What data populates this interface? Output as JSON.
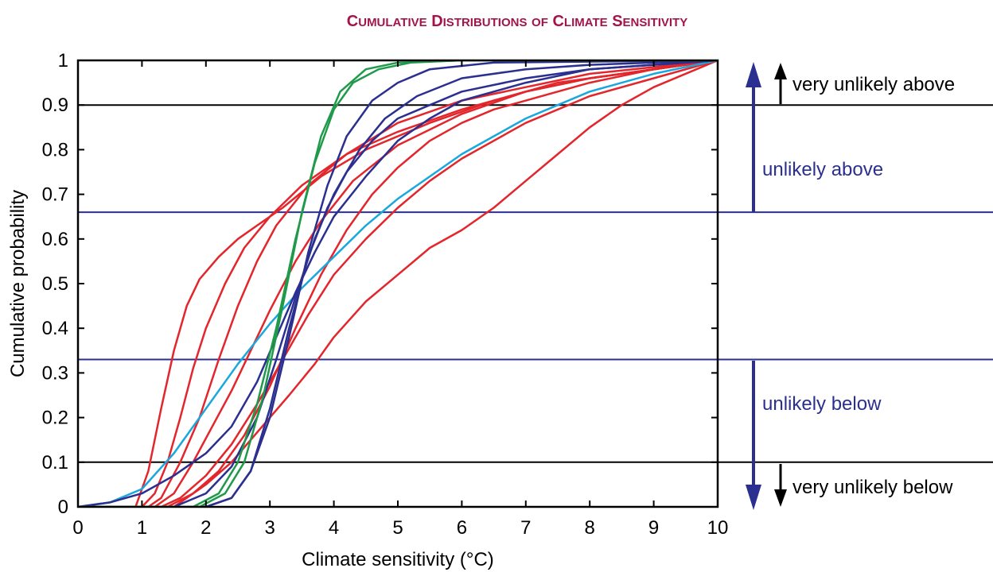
{
  "chart_data": {
    "type": "line",
    "title": "Cumulative Distributions of Climate Sensitivity",
    "xlabel": "Climate sensitivity (°C)",
    "ylabel": "Cumulative probability",
    "xlim": [
      0,
      10
    ],
    "ylim": [
      0,
      1
    ],
    "x_ticks": [
      0,
      1,
      2,
      3,
      4,
      5,
      6,
      7,
      8,
      9,
      10
    ],
    "y_ticks": [
      0,
      0.1,
      0.2,
      0.3,
      0.4,
      0.5,
      0.6,
      0.7,
      0.8,
      0.9,
      1
    ],
    "y_tick_labels": [
      "0",
      "0.1",
      "0.2",
      "0.3",
      "0.4",
      "0.5",
      "0.6",
      "0.7",
      "0.8",
      "0.9",
      "1"
    ],
    "grid": false,
    "reference_lines": [
      {
        "y": 0.9,
        "color": "#000000"
      },
      {
        "y": 0.66,
        "color": "#2b2f8f"
      },
      {
        "y": 0.33,
        "color": "#2b2f8f"
      },
      {
        "y": 0.1,
        "color": "#000000"
      }
    ],
    "annotations": [
      {
        "text": "very unlikely above",
        "color": "#000000"
      },
      {
        "text": "unlikely above",
        "color": "#2b2f8f"
      },
      {
        "text": "unlikely below",
        "color": "#2b2f8f"
      },
      {
        "text": "very unlikely below",
        "color": "#000000"
      }
    ],
    "colors": {
      "red": "#e3262c",
      "blue": "#2b2f8f",
      "green": "#1f9a4a",
      "cyan": "#1aa7dd",
      "title": "#a3154a"
    },
    "series": [
      {
        "color": "#e3262c",
        "points": [
          [
            0,
            0
          ],
          [
            0.9,
            0
          ],
          [
            1.1,
            0.08
          ],
          [
            1.3,
            0.22
          ],
          [
            1.5,
            0.35
          ],
          [
            1.7,
            0.45
          ],
          [
            1.9,
            0.51
          ],
          [
            2.2,
            0.56
          ],
          [
            2.5,
            0.6
          ],
          [
            2.8,
            0.63
          ],
          [
            3.2,
            0.67
          ],
          [
            3.8,
            0.74
          ],
          [
            4.5,
            0.8
          ],
          [
            5.5,
            0.86
          ],
          [
            6.5,
            0.91
          ],
          [
            7.5,
            0.95
          ],
          [
            8.5,
            0.97
          ],
          [
            10,
            1
          ]
        ]
      },
      {
        "color": "#e3262c",
        "points": [
          [
            0,
            0
          ],
          [
            1.0,
            0
          ],
          [
            1.2,
            0.03
          ],
          [
            1.4,
            0.1
          ],
          [
            1.6,
            0.2
          ],
          [
            1.8,
            0.31
          ],
          [
            2.0,
            0.4
          ],
          [
            2.3,
            0.5
          ],
          [
            2.6,
            0.58
          ],
          [
            3.0,
            0.65
          ],
          [
            3.5,
            0.72
          ],
          [
            4.2,
            0.79
          ],
          [
            5.0,
            0.84
          ],
          [
            6.0,
            0.89
          ],
          [
            7.0,
            0.93
          ],
          [
            8.0,
            0.96
          ],
          [
            9.0,
            0.98
          ],
          [
            10,
            1
          ]
        ]
      },
      {
        "color": "#e3262c",
        "points": [
          [
            0,
            0
          ],
          [
            1.1,
            0
          ],
          [
            1.3,
            0.02
          ],
          [
            1.6,
            0.1
          ],
          [
            1.9,
            0.2
          ],
          [
            2.2,
            0.33
          ],
          [
            2.5,
            0.45
          ],
          [
            2.8,
            0.55
          ],
          [
            3.1,
            0.63
          ],
          [
            3.6,
            0.72
          ],
          [
            4.2,
            0.79
          ],
          [
            5.0,
            0.86
          ],
          [
            6.0,
            0.91
          ],
          [
            7.0,
            0.94
          ],
          [
            8.0,
            0.97
          ],
          [
            10,
            1
          ]
        ]
      },
      {
        "color": "#e3262c",
        "points": [
          [
            0,
            0
          ],
          [
            1.2,
            0
          ],
          [
            1.5,
            0.03
          ],
          [
            1.8,
            0.1
          ],
          [
            2.1,
            0.18
          ],
          [
            2.4,
            0.26
          ],
          [
            2.7,
            0.35
          ],
          [
            3.0,
            0.44
          ],
          [
            3.4,
            0.55
          ],
          [
            3.8,
            0.64
          ],
          [
            4.3,
            0.73
          ],
          [
            5.0,
            0.81
          ],
          [
            6.0,
            0.88
          ],
          [
            7.0,
            0.93
          ],
          [
            8.0,
            0.96
          ],
          [
            10,
            1
          ]
        ]
      },
      {
        "color": "#e3262c",
        "points": [
          [
            0,
            0
          ],
          [
            1.3,
            0
          ],
          [
            1.6,
            0.02
          ],
          [
            2.0,
            0.07
          ],
          [
            2.4,
            0.14
          ],
          [
            2.8,
            0.23
          ],
          [
            3.2,
            0.33
          ],
          [
            3.6,
            0.43
          ],
          [
            4.0,
            0.52
          ],
          [
            4.5,
            0.6
          ],
          [
            5.0,
            0.67
          ],
          [
            5.5,
            0.73
          ],
          [
            6.0,
            0.78
          ],
          [
            7.0,
            0.86
          ],
          [
            8.0,
            0.92
          ],
          [
            9.0,
            0.96
          ],
          [
            10,
            1
          ]
        ]
      },
      {
        "color": "#e3262c",
        "points": [
          [
            0,
            0
          ],
          [
            1.5,
            0
          ],
          [
            2.0,
            0.05
          ],
          [
            2.4,
            0.1
          ],
          [
            2.7,
            0.15
          ],
          [
            3.0,
            0.2
          ],
          [
            3.3,
            0.25
          ],
          [
            3.7,
            0.32
          ],
          [
            4.0,
            0.38
          ],
          [
            4.5,
            0.46
          ],
          [
            5.0,
            0.52
          ],
          [
            5.5,
            0.58
          ],
          [
            6.0,
            0.62
          ],
          [
            6.5,
            0.67
          ],
          [
            7.0,
            0.73
          ],
          [
            7.5,
            0.79
          ],
          [
            8.0,
            0.85
          ],
          [
            8.5,
            0.9
          ],
          [
            9.0,
            0.94
          ],
          [
            10,
            1
          ]
        ]
      },
      {
        "color": "#e3262c",
        "points": [
          [
            0,
            0
          ],
          [
            1.4,
            0
          ],
          [
            1.8,
            0.03
          ],
          [
            2.2,
            0.08
          ],
          [
            2.6,
            0.16
          ],
          [
            3.0,
            0.27
          ],
          [
            3.4,
            0.4
          ],
          [
            3.8,
            0.52
          ],
          [
            4.2,
            0.62
          ],
          [
            4.6,
            0.7
          ],
          [
            5.0,
            0.76
          ],
          [
            5.5,
            0.82
          ],
          [
            6.0,
            0.86
          ],
          [
            6.5,
            0.89
          ],
          [
            7.0,
            0.91
          ],
          [
            8.0,
            0.95
          ],
          [
            9.0,
            0.98
          ],
          [
            10,
            1
          ]
        ]
      },
      {
        "color": "#1aa7dd",
        "points": [
          [
            0,
            0
          ],
          [
            0.5,
            0.01
          ],
          [
            1.0,
            0.04
          ],
          [
            1.5,
            0.12
          ],
          [
            2.0,
            0.22
          ],
          [
            2.5,
            0.32
          ],
          [
            3.0,
            0.41
          ],
          [
            3.5,
            0.49
          ],
          [
            4.0,
            0.56
          ],
          [
            4.5,
            0.63
          ],
          [
            5.0,
            0.69
          ],
          [
            5.5,
            0.74
          ],
          [
            6.0,
            0.79
          ],
          [
            6.5,
            0.83
          ],
          [
            7.0,
            0.87
          ],
          [
            7.5,
            0.9
          ],
          [
            8.0,
            0.93
          ],
          [
            9.0,
            0.97
          ],
          [
            10,
            1
          ]
        ]
      },
      {
        "color": "#2b2f8f",
        "points": [
          [
            0,
            0
          ],
          [
            0.5,
            0.01
          ],
          [
            1.0,
            0.03
          ],
          [
            1.5,
            0.07
          ],
          [
            2.0,
            0.12
          ],
          [
            2.4,
            0.18
          ],
          [
            2.8,
            0.28
          ],
          [
            3.1,
            0.38
          ],
          [
            3.4,
            0.48
          ],
          [
            3.7,
            0.57
          ],
          [
            4.0,
            0.65
          ],
          [
            4.5,
            0.74
          ],
          [
            5.0,
            0.82
          ],
          [
            5.5,
            0.87
          ],
          [
            6.0,
            0.91
          ],
          [
            7.0,
            0.95
          ],
          [
            8.0,
            0.98
          ],
          [
            10,
            1
          ]
        ]
      },
      {
        "color": "#2b2f8f",
        "points": [
          [
            0,
            0
          ],
          [
            1.5,
            0
          ],
          [
            2.0,
            0.03
          ],
          [
            2.4,
            0.09
          ],
          [
            2.8,
            0.2
          ],
          [
            3.1,
            0.33
          ],
          [
            3.4,
            0.47
          ],
          [
            3.7,
            0.6
          ],
          [
            4.0,
            0.7
          ],
          [
            4.4,
            0.8
          ],
          [
            4.8,
            0.87
          ],
          [
            5.3,
            0.92
          ],
          [
            6.0,
            0.96
          ],
          [
            7.0,
            0.98
          ],
          [
            8.0,
            0.99
          ],
          [
            10,
            1
          ]
        ]
      },
      {
        "color": "#2b2f8f",
        "points": [
          [
            0,
            0
          ],
          [
            2.0,
            0
          ],
          [
            2.4,
            0.02
          ],
          [
            2.7,
            0.08
          ],
          [
            3.0,
            0.2
          ],
          [
            3.3,
            0.38
          ],
          [
            3.6,
            0.57
          ],
          [
            3.9,
            0.72
          ],
          [
            4.2,
            0.83
          ],
          [
            4.6,
            0.91
          ],
          [
            5.0,
            0.95
          ],
          [
            5.5,
            0.98
          ],
          [
            6.5,
            0.995
          ],
          [
            10,
            1
          ]
        ]
      },
      {
        "color": "#2b2f8f",
        "points": [
          [
            0,
            0
          ],
          [
            2.0,
            0
          ],
          [
            2.4,
            0.02
          ],
          [
            2.7,
            0.08
          ],
          [
            3.0,
            0.22
          ],
          [
            3.3,
            0.4
          ],
          [
            3.6,
            0.56
          ],
          [
            3.9,
            0.67
          ],
          [
            4.2,
            0.75
          ],
          [
            4.6,
            0.82
          ],
          [
            5.0,
            0.87
          ],
          [
            5.5,
            0.9
          ],
          [
            6.0,
            0.93
          ],
          [
            7.0,
            0.96
          ],
          [
            8.0,
            0.98
          ],
          [
            10,
            1
          ]
        ]
      },
      {
        "color": "#1f9a4a",
        "points": [
          [
            0,
            0
          ],
          [
            1.8,
            0
          ],
          [
            2.2,
            0.03
          ],
          [
            2.5,
            0.1
          ],
          [
            2.8,
            0.23
          ],
          [
            3.1,
            0.4
          ],
          [
            3.4,
            0.6
          ],
          [
            3.7,
            0.77
          ],
          [
            4.0,
            0.89
          ],
          [
            4.3,
            0.95
          ],
          [
            4.7,
            0.98
          ],
          [
            5.2,
            0.995
          ],
          [
            6.0,
            1
          ],
          [
            10,
            1
          ]
        ]
      },
      {
        "color": "#1f9a4a",
        "points": [
          [
            0,
            0
          ],
          [
            1.9,
            0
          ],
          [
            2.3,
            0.03
          ],
          [
            2.6,
            0.1
          ],
          [
            2.9,
            0.25
          ],
          [
            3.2,
            0.45
          ],
          [
            3.5,
            0.66
          ],
          [
            3.8,
            0.83
          ],
          [
            4.1,
            0.93
          ],
          [
            4.5,
            0.98
          ],
          [
            5.0,
            0.995
          ],
          [
            6.0,
            1
          ],
          [
            10,
            1
          ]
        ]
      }
    ]
  }
}
